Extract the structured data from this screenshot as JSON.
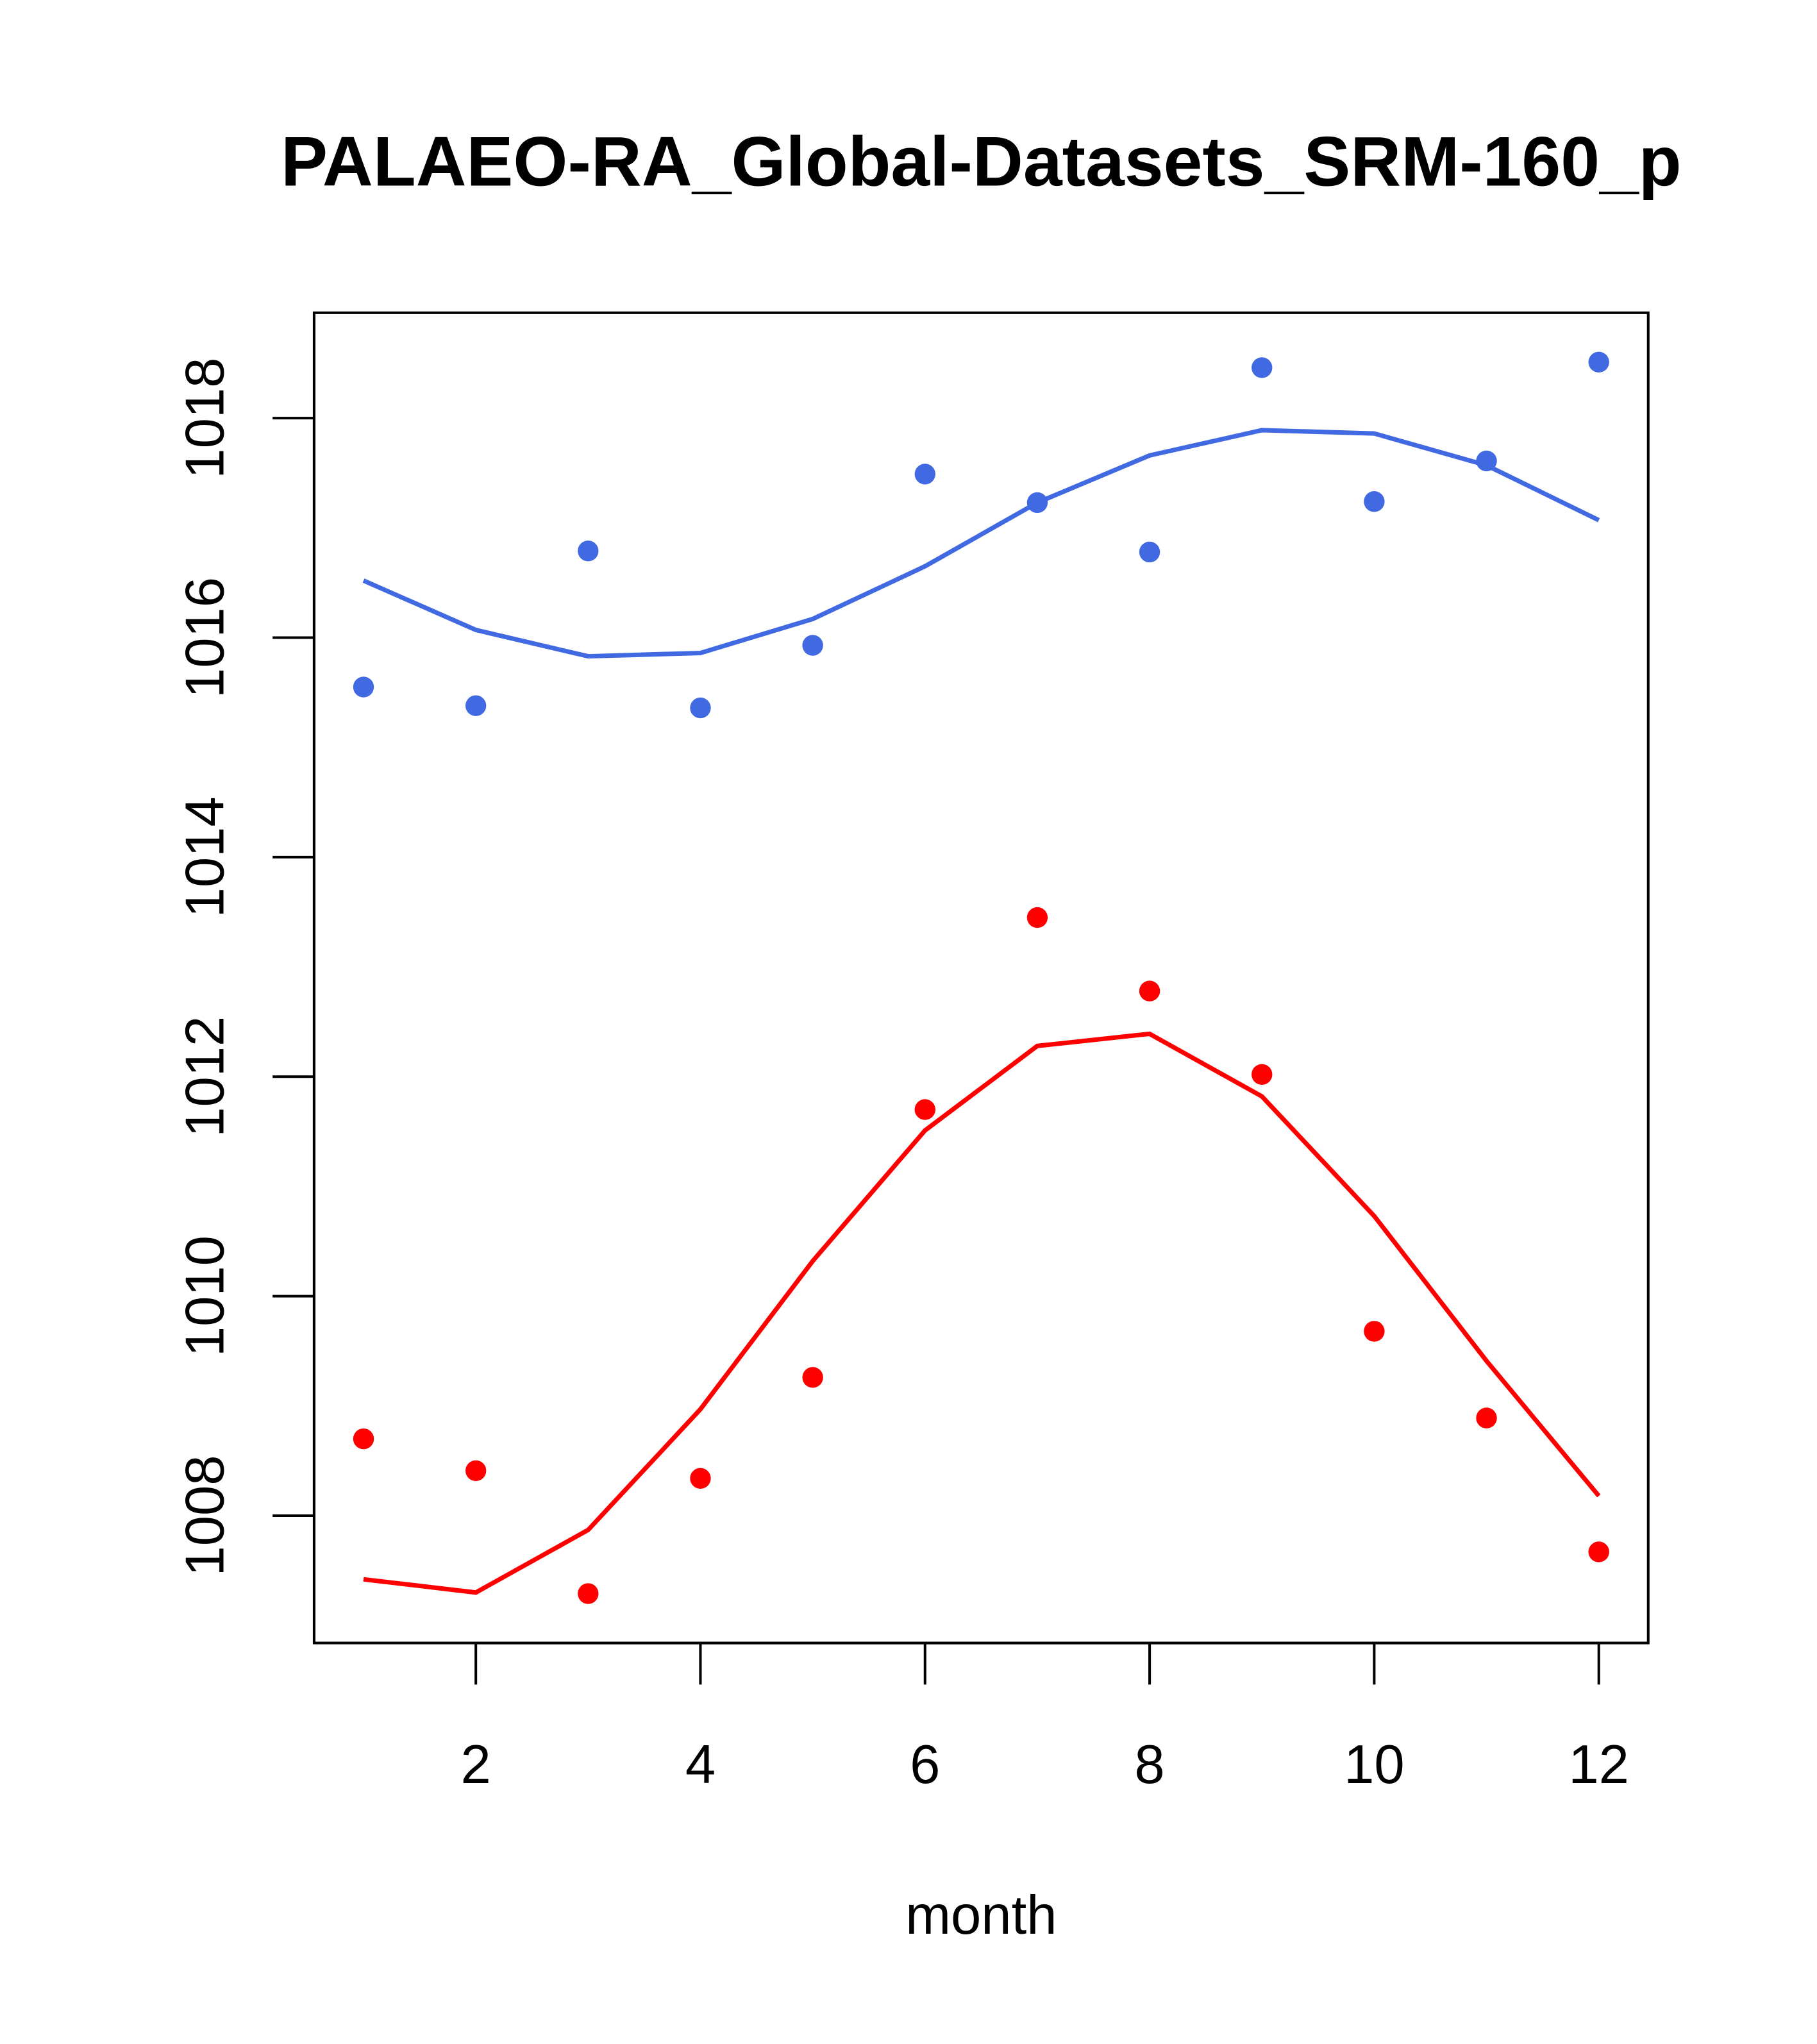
{
  "chart_data": {
    "type": "scatter",
    "title": "PALAEO-RA_Global-Datasets_SRM-160_p",
    "xlabel": "month",
    "ylabel": "",
    "xlim": [
      0.56,
      12.44
    ],
    "ylim": [
      1006.84,
      1018.96
    ],
    "xticks": [
      2,
      4,
      6,
      8,
      10,
      12
    ],
    "yticks": [
      1008,
      1010,
      1012,
      1014,
      1016,
      1018
    ],
    "grid": false,
    "x": [
      1,
      2,
      3,
      4,
      5,
      6,
      7,
      8,
      9,
      10,
      11,
      12
    ],
    "series": [
      {
        "name": "blue points",
        "kind": "points",
        "color": "#4169E1",
        "values": [
          1015.55,
          1015.38,
          1016.79,
          1015.36,
          1015.93,
          1017.49,
          1017.23,
          1016.78,
          1018.46,
          1017.24,
          1017.61,
          1018.51
        ]
      },
      {
        "name": "blue line",
        "kind": "line",
        "color": "#4169E1",
        "values": [
          1016.52,
          1016.07,
          1015.83,
          1015.86,
          1016.17,
          1016.65,
          1017.23,
          1017.66,
          1017.89,
          1017.86,
          1017.57,
          1017.07
        ]
      },
      {
        "name": "red points",
        "kind": "points",
        "color": "#FF0000",
        "values": [
          1008.7,
          1008.41,
          1007.29,
          1008.34,
          1009.26,
          1011.7,
          1013.45,
          1012.78,
          1012.02,
          1009.68,
          1008.89,
          1007.67
        ]
      },
      {
        "name": "red line",
        "kind": "line",
        "color": "#FF0000",
        "values": [
          1007.42,
          1007.3,
          1007.87,
          1008.97,
          1010.32,
          1011.51,
          1012.28,
          1012.39,
          1011.82,
          1010.73,
          1009.41,
          1008.18
        ]
      }
    ]
  }
}
